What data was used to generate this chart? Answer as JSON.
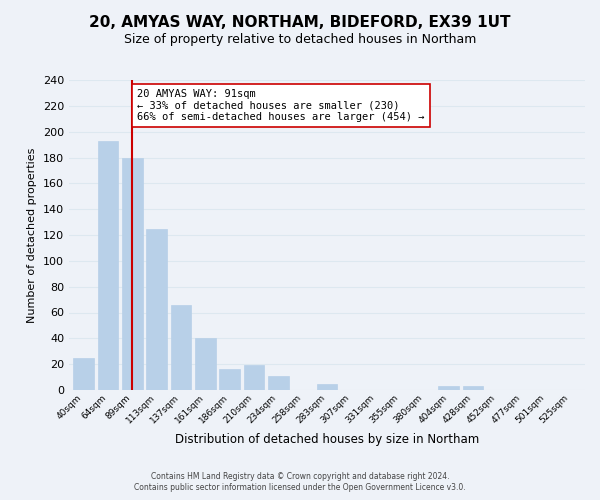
{
  "title": "20, AMYAS WAY, NORTHAM, BIDEFORD, EX39 1UT",
  "subtitle": "Size of property relative to detached houses in Northam",
  "xlabel": "Distribution of detached houses by size in Northam",
  "ylabel": "Number of detached properties",
  "bin_labels": [
    "40sqm",
    "64sqm",
    "89sqm",
    "113sqm",
    "137sqm",
    "161sqm",
    "186sqm",
    "210sqm",
    "234sqm",
    "258sqm",
    "283sqm",
    "307sqm",
    "331sqm",
    "355sqm",
    "380sqm",
    "404sqm",
    "428sqm",
    "452sqm",
    "477sqm",
    "501sqm",
    "525sqm"
  ],
  "bar_heights": [
    25,
    193,
    180,
    125,
    66,
    40,
    16,
    19,
    11,
    0,
    5,
    0,
    0,
    0,
    0,
    3,
    3,
    0,
    0,
    0,
    0
  ],
  "bar_color": "#b8d0e8",
  "bar_edge_color": "#b8d0e8",
  "vline_x": 2,
  "vline_color": "#cc0000",
  "annotation_title": "20 AMYAS WAY: 91sqm",
  "annotation_line1": "← 33% of detached houses are smaller (230)",
  "annotation_line2": "66% of semi-detached houses are larger (454) →",
  "annotation_box_color": "#ffffff",
  "annotation_box_edge": "#cc0000",
  "footer_line1": "Contains HM Land Registry data © Crown copyright and database right 2024.",
  "footer_line2": "Contains public sector information licensed under the Open Government Licence v3.0.",
  "ylim": [
    0,
    240
  ],
  "yticks": [
    0,
    20,
    40,
    60,
    80,
    100,
    120,
    140,
    160,
    180,
    200,
    220,
    240
  ],
  "grid_color": "#dde8f0",
  "background_color": "#eef2f8",
  "title_fontsize": 11,
  "subtitle_fontsize": 9
}
